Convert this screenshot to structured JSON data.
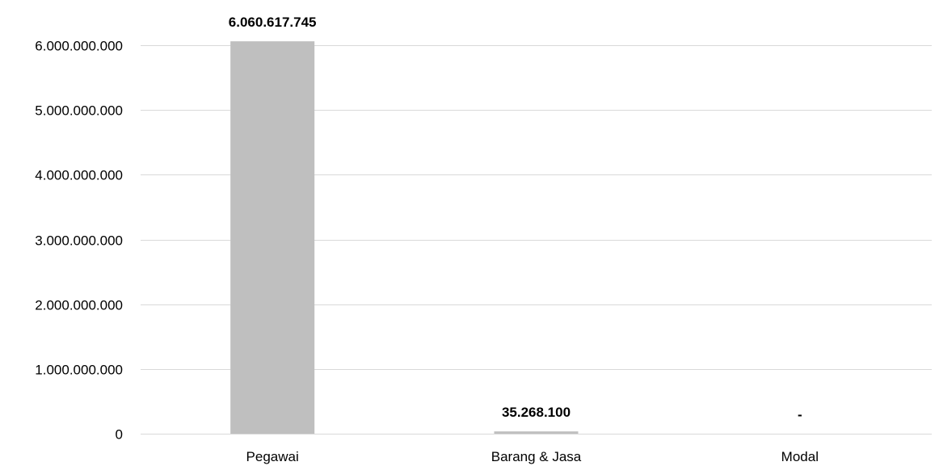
{
  "chart_data": {
    "type": "bar",
    "title": "",
    "xlabel": "",
    "ylabel": "",
    "categories": [
      "Pegawai",
      "Barang & Jasa",
      "Modal"
    ],
    "values": [
      6060617745,
      35268100,
      0
    ],
    "data_labels": [
      "6.060.617.745",
      "35.268.100",
      "-"
    ],
    "ylim": [
      0,
      6000000000
    ],
    "yticks": [
      0,
      1000000000,
      2000000000,
      3000000000,
      4000000000,
      5000000000,
      6000000000
    ],
    "ytick_labels": [
      "0",
      "1.000.000.000",
      "2.000.000.000",
      "3.000.000.000",
      "4.000.000.000",
      "5.000.000.000",
      "6.000.000.000"
    ],
    "grid": true,
    "legend": "none",
    "colors": {
      "bar": "#bfbfbf",
      "grid": "#d9d9d9",
      "text": "#000000"
    }
  }
}
